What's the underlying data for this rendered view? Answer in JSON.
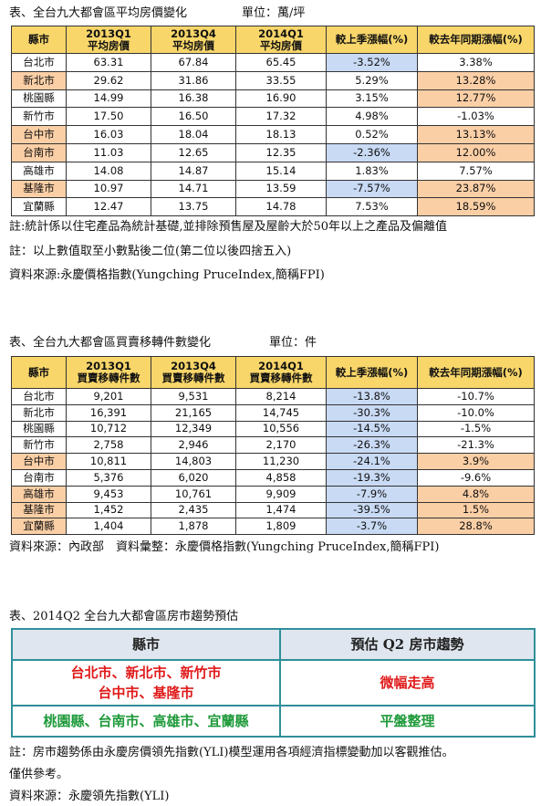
{
  "table1": {
    "title": "表、全台九大都會區平均房價變化",
    "unit": "單位：萬/坪",
    "header": [
      [
        "縣市"
      ],
      [
        "2013Q1",
        "平均房價"
      ],
      [
        "2013Q4",
        "平均房價"
      ],
      [
        "2014Q1",
        "平均房價"
      ],
      [
        "較上季漲幅(%)"
      ],
      [
        "較去年同期漲幅(%)"
      ]
    ],
    "rows": [
      [
        "台北市",
        "63.31",
        "67.84",
        "65.45",
        "-3.52%",
        "3.38%"
      ],
      [
        "新北市",
        "29.62",
        "31.86",
        "33.55",
        "5.29%",
        "13.28%"
      ],
      [
        "桃園縣",
        "14.99",
        "16.38",
        "16.90",
        "3.15%",
        "12.77%"
      ],
      [
        "新竹市",
        "17.50",
        "16.50",
        "17.32",
        "4.98%",
        "-1.03%"
      ],
      [
        "台中市",
        "16.03",
        "18.04",
        "18.13",
        "0.52%",
        "13.13%"
      ],
      [
        "台南市",
        "11.03",
        "12.65",
        "12.35",
        "-2.36%",
        "12.00%"
      ],
      [
        "高雄市",
        "14.08",
        "14.87",
        "15.14",
        "1.83%",
        "7.57%"
      ],
      [
        "基隆市",
        "10.97",
        "14.71",
        "13.59",
        "-7.57%",
        "23.87%"
      ],
      [
        "宜蘭縣",
        "12.47",
        "13.75",
        "14.78",
        "7.53%",
        "18.59%"
      ]
    ],
    "notes": [
      "註:統計係以住宅產品為統計基礎,並排除預售屋及屋齡大於50年以上之產品及偏離值",
      "註：以上數值取至小數點後二位(第二位以後四捨五入)",
      "資料來源:永慶價格指數(Yungching PruceIndex,簡稱FPI)"
    ]
  },
  "table2": {
    "title": "表、全台九大都會區買賣移轉件數變化",
    "unit": "單位：件",
    "header": [
      [
        "縣市"
      ],
      [
        "2013Q1",
        "買賣移轉件數"
      ],
      [
        "2013Q4",
        "買賣移轉件數"
      ],
      [
        "2014Q1",
        "買賣移轉件數"
      ],
      [
        "較上季漲幅(%)"
      ],
      [
        "較去年同期漲幅(%)"
      ]
    ],
    "rows": [
      [
        "台北市",
        "9,201",
        "9,531",
        "8,214",
        "-13.8%",
        "-10.7%"
      ],
      [
        "新北市",
        "16,391",
        "21,165",
        "14,745",
        "-30.3%",
        "-10.0%"
      ],
      [
        "桃園縣",
        "10,712",
        "12,349",
        "10,556",
        "-14.5%",
        "-1.5%"
      ],
      [
        "新竹市",
        "2,758",
        "2,946",
        "2,170",
        "-26.3%",
        "-21.3%"
      ],
      [
        "台中市",
        "10,811",
        "14,803",
        "11,230",
        "-24.1%",
        "3.9%"
      ],
      [
        "台南市",
        "5,376",
        "6,020",
        "4,858",
        "-19.3%",
        "-9.6%"
      ],
      [
        "高雄市",
        "9,453",
        "10,761",
        "9,909",
        "-7.9%",
        "4.8%"
      ],
      [
        "基隆市",
        "1,452",
        "2,435",
        "1,474",
        "-39.5%",
        "1.5%"
      ],
      [
        "宜蘭縣",
        "1,404",
        "1,878",
        "1,809",
        "-3.7%",
        "28.8%"
      ]
    ],
    "notes": [
      "資料來源：內政部　資料彙整：永慶價格指數(Yungching PruceIndex,簡稱FPI)"
    ]
  },
  "table3": {
    "title": "表、2014Q2 全台九大都會區房市趨勢預估",
    "header": [
      "縣市",
      "預估 Q2 房市趨勢"
    ],
    "rows": [
      [
        [
          "台北市、新北市、新竹市",
          "台中市、基隆市"
        ],
        "微幅走高"
      ],
      [
        [
          "桃園縣、台南市、高雄市、宜蘭縣"
        ],
        "平盤整理"
      ]
    ],
    "notes": [
      "註：房市趨勢係由永慶房價領先指數(YLI)模型運用各項經濟指標變動加以客觀推估。",
      "僅供參考。",
      "資料來源：永慶領先指數(YLI)"
    ]
  }
}
